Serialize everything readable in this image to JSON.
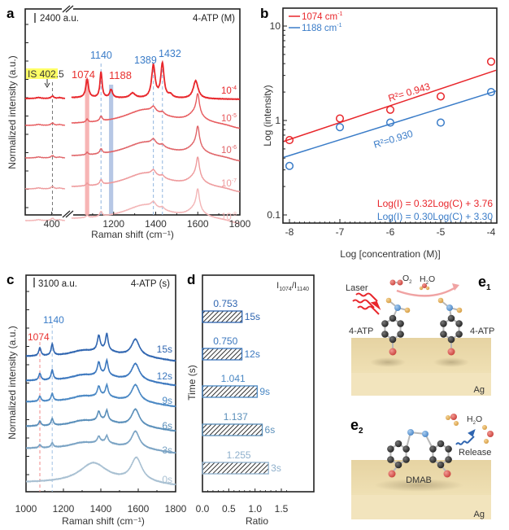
{
  "chart_data": [
    {
      "panel": "a",
      "type": "line",
      "title": "4-ATP (M)",
      "scale_bar": "2400 a.u.",
      "xlabel": "Raman shift (cm⁻¹)",
      "ylabel": "Normalized intensity (a.u.)",
      "xticks": [
        "400",
        "1200",
        "1400",
        "1600",
        "1800"
      ],
      "xlim": [
        300,
        1800
      ],
      "axis_break": "between 450 and 1000",
      "grid": false,
      "annotations": [
        {
          "text": "IS 402.5",
          "x": 402.5,
          "color": "#d4a800",
          "highlight": "#ffff66"
        },
        {
          "text": "1074",
          "x": 1074,
          "color": "#e8312f"
        },
        {
          "text": "1140",
          "x": 1140,
          "color": "#3a7cc8"
        },
        {
          "text": "1188",
          "x": 1188,
          "color": "#e8312f"
        },
        {
          "text": "1389",
          "x": 1389,
          "color": "#3a7cc8"
        },
        {
          "text": "1432",
          "x": 1432,
          "color": "#3a7cc8"
        }
      ],
      "series": [
        {
          "name": "10",
          "exp": "-4",
          "color": "#e8262b"
        },
        {
          "name": "10",
          "exp": "-5",
          "color": "#e75b5e"
        },
        {
          "name": "10",
          "exp": "-6",
          "color": "#e06468"
        },
        {
          "name": "10",
          "exp": "-7",
          "color": "#ee9a9c"
        },
        {
          "name": "10",
          "exp": "-8",
          "color": "#f3b5b6"
        }
      ]
    },
    {
      "panel": "b",
      "type": "scatter",
      "xlabel": "Log [concentration (M)]",
      "ylabel": "Log (intensity)",
      "xlim": [
        -8.1,
        -3.9
      ],
      "ylim": [
        0.1,
        15
      ],
      "yscale": "log",
      "xticks": [
        "-8",
        "-7",
        "-6",
        "-5",
        "-4"
      ],
      "yticks": [
        "0.1",
        "1",
        "10"
      ],
      "legend_position": "top-left",
      "x": [
        -8,
        -7,
        -6,
        -5,
        -4
      ],
      "series": [
        {
          "name": "1074 cm⁻¹",
          "color": "#e8262b",
          "values": [
            0.62,
            1.05,
            1.3,
            1.8,
            4.2
          ],
          "fit_r2": "R²= 0.943",
          "equation": "Log(I) = 0.32Log(C) + 3.76",
          "fit": [
            0.62,
            3.4
          ]
        },
        {
          "name": "1188 cm⁻¹",
          "color": "#3a7cc8",
          "values": [
            0.33,
            0.85,
            0.95,
            0.95,
            2.0
          ],
          "fit_r2": "R²=0.930",
          "equation": "Log(I) = 0.30Log(C) + 3.30",
          "fit": [
            0.42,
            2.05
          ]
        }
      ]
    },
    {
      "panel": "c",
      "type": "line",
      "title": "4-ATP (s)",
      "scale_bar": "3100 a.u.",
      "xlabel": "Raman shift (cm⁻¹)",
      "ylabel": "Normalized intensity (a.u.)",
      "xlim": [
        1000,
        1800
      ],
      "xticks": [
        "1000",
        "1200",
        "1400",
        "1600",
        "1800"
      ],
      "annotations": [
        {
          "text": "1074",
          "x": 1074,
          "color": "#e8312f"
        },
        {
          "text": "1140",
          "x": 1140,
          "color": "#3a7cc8"
        }
      ],
      "series": [
        {
          "name": "15s",
          "color": "#2f65b0"
        },
        {
          "name": "12s",
          "color": "#3b77be"
        },
        {
          "name": "9s",
          "color": "#4a88c4"
        },
        {
          "name": "6s",
          "color": "#5a8fba"
        },
        {
          "name": "3s",
          "color": "#7aa3c4"
        },
        {
          "name": "0s",
          "color": "#a8c0d2"
        }
      ]
    },
    {
      "panel": "d",
      "type": "bar",
      "orientation": "horizontal",
      "title": "I₁₀₇₄/I₁₁₄₀",
      "xlabel": "Ratio",
      "ylabel": "Time (s)",
      "xlim": [
        0,
        1.7
      ],
      "xticks": [
        "0.0",
        "0.5",
        "1.0",
        "1.5"
      ],
      "categories": [
        "15s",
        "12s",
        "9s",
        "6s",
        "3s"
      ],
      "values": [
        0.753,
        0.75,
        1.041,
        1.137,
        1.255
      ],
      "labels": [
        "0.753",
        "0.750",
        "1.041",
        "1.137",
        "1.255"
      ],
      "colors": [
        "#2f65b0",
        "#3b77be",
        "#4a88c4",
        "#5a8fba",
        "#8fb0cc"
      ],
      "pattern": "diagonal-hatch"
    }
  ],
  "panels": {
    "a_label": "a",
    "b_label": "b",
    "c_label": "c",
    "d_label": "d",
    "e1_label": "e",
    "e1_sub": "1",
    "e2_label": "e",
    "e2_sub": "2"
  },
  "schematic": {
    "e1": {
      "laser": "Laser",
      "o2": "O",
      "o2_sub": "2",
      "h2o_h": "H",
      "h2o_sub": "2",
      "h2o_o": "O",
      "molecule_left": "4-ATP",
      "molecule_right": "4-ATP",
      "substrate": "Ag"
    },
    "e2": {
      "h2o_h": "H",
      "h2o_sub": "2",
      "h2o_o": "O",
      "release": "Release",
      "molecule": "DMAB",
      "substrate": "Ag"
    }
  }
}
